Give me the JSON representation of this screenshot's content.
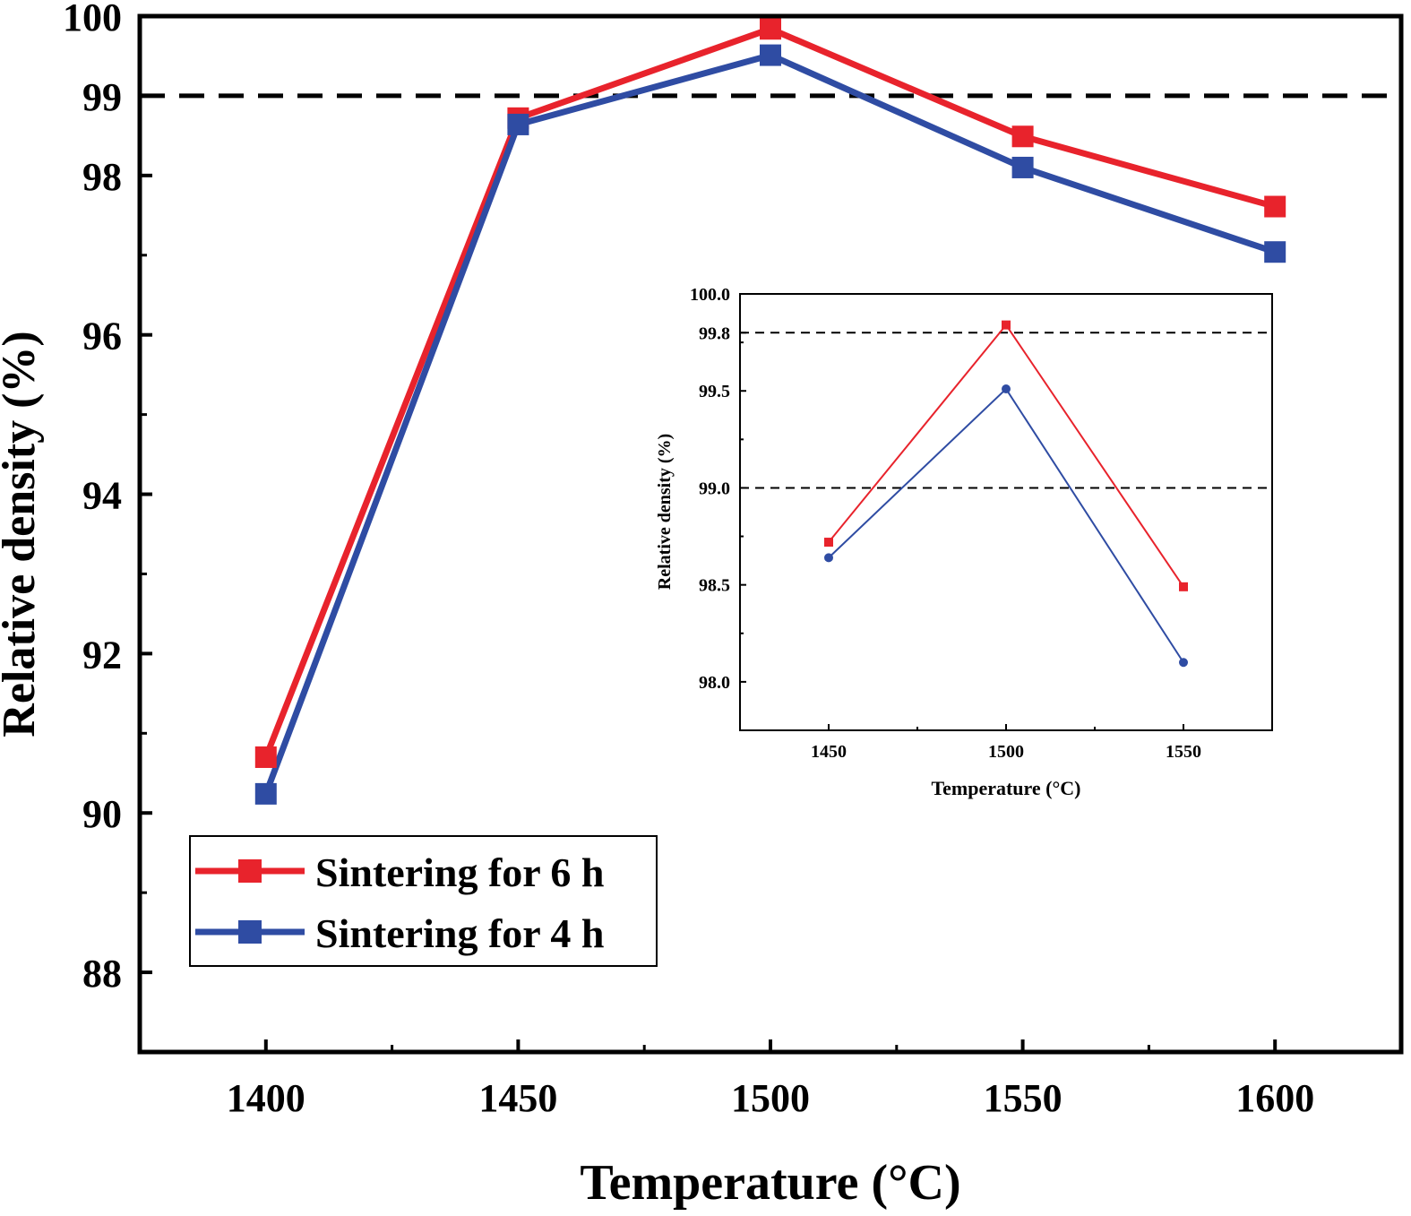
{
  "chart_data": [
    {
      "type": "line",
      "xlabel": "Temperature (°C)",
      "ylabel": "Relative density (%)",
      "x": [
        1400,
        1450,
        1500,
        1550,
        1600
      ],
      "xlim": [
        1375,
        1625
      ],
      "ylim": [
        87,
        100
      ],
      "xticks": [
        "1400",
        "1450",
        "1500",
        "1550",
        "1600"
      ],
      "yticks": [
        "88",
        "90",
        "92",
        "94",
        "96",
        "98",
        "99",
        "100"
      ],
      "ytick_values": [
        88,
        90,
        92,
        94,
        96,
        98,
        99,
        100
      ],
      "reference_line": {
        "y": 99,
        "style": "dashed"
      },
      "grid": false,
      "legend_position": "bottom-left",
      "series": [
        {
          "name": "Sintering for 6 h",
          "color": "#e8232c",
          "marker": "square",
          "values": [
            90.7,
            98.72,
            99.84,
            98.49,
            97.61
          ]
        },
        {
          "name": "Sintering for 4 h",
          "color": "#2f4ca3",
          "marker": "square",
          "values": [
            90.24,
            98.64,
            99.51,
            98.1,
            97.04
          ]
        }
      ]
    },
    {
      "type": "line",
      "xlabel": "Temperature (°C)",
      "ylabel": "Relative density (%)",
      "x": [
        1450,
        1500,
        1550
      ],
      "xlim": [
        1425,
        1575
      ],
      "ylim": [
        97.75,
        100.0
      ],
      "xticks": [
        "1450",
        "1500",
        "1550"
      ],
      "yticks": [
        "98.0",
        "98.5",
        "99.0",
        "99.5",
        "99.8",
        "100.0"
      ],
      "ytick_values": [
        98.0,
        98.5,
        99.0,
        99.5,
        99.8,
        100.0
      ],
      "reference_lines": [
        {
          "y": 99.8,
          "style": "dashed"
        },
        {
          "y": 99.0,
          "style": "dashed"
        }
      ],
      "grid": false,
      "series": [
        {
          "name": "Sintering for 6 h",
          "color": "#e8232c",
          "marker": "square",
          "values": [
            98.72,
            99.84,
            98.49
          ]
        },
        {
          "name": "Sintering for 4 h",
          "color": "#2f4ca3",
          "marker": "circle",
          "values": [
            98.64,
            99.51,
            98.1
          ]
        }
      ]
    }
  ]
}
